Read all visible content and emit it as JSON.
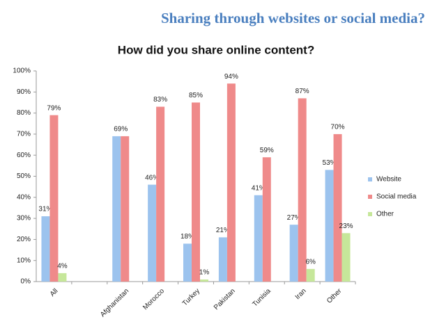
{
  "header": {
    "title": "Sharing through websites or social media?"
  },
  "chart_data": {
    "type": "bar",
    "title": "How did you share online content?",
    "categories": [
      "All",
      null,
      "Afghanistan",
      "Morocco",
      "Turkey",
      "Pakistan",
      "Tunisia",
      "Iran",
      "Other"
    ],
    "series": [
      {
        "name": "Website",
        "color": "#9cc3ee",
        "values": [
          31,
          null,
          69,
          46,
          18,
          21,
          41,
          27,
          53
        ],
        "value_labels": [
          "31%",
          null,
          "69%",
          "46%",
          "18%",
          "21%",
          "41%",
          "27%",
          "53%"
        ]
      },
      {
        "name": "Social media",
        "color": "#ef8a8a",
        "values": [
          79,
          null,
          69,
          83,
          85,
          94,
          59,
          87,
          70
        ],
        "value_labels": [
          "79%",
          null,
          null,
          "83%",
          "85%",
          "94%",
          "59%",
          "87%",
          "70%"
        ]
      },
      {
        "name": "Other",
        "color": "#c6e79a",
        "values": [
          4,
          null,
          null,
          null,
          1,
          null,
          null,
          6,
          23
        ],
        "value_labels": [
          "4%",
          null,
          null,
          null,
          "1%",
          null,
          null,
          "6%",
          "23%"
        ]
      }
    ],
    "ylim": [
      0,
      100
    ],
    "yticks": [
      {
        "value": 0,
        "label": "0%"
      },
      {
        "value": 10,
        "label": "10%"
      },
      {
        "value": 20,
        "label": "20%"
      },
      {
        "value": 30,
        "label": "30%"
      },
      {
        "value": 40,
        "label": "40%"
      },
      {
        "value": 50,
        "label": "50%"
      },
      {
        "value": 60,
        "label": "60%"
      },
      {
        "value": 70,
        "label": "70%"
      },
      {
        "value": 80,
        "label": "80%"
      },
      {
        "value": 90,
        "label": "90%"
      },
      {
        "value": 100,
        "label": "100%"
      }
    ],
    "legend": "right",
    "grid": false
  }
}
